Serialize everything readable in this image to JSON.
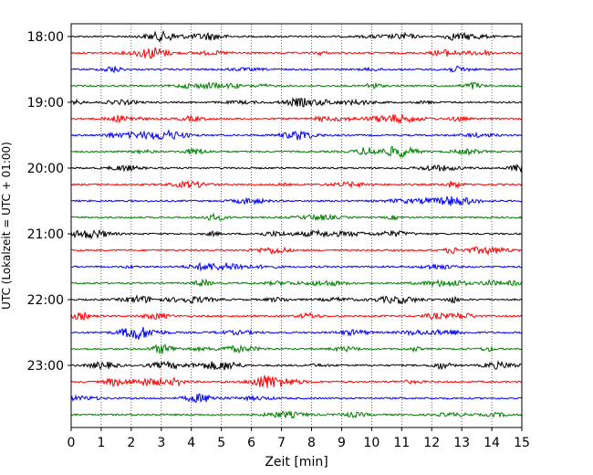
{
  "chart_data": {
    "type": "line",
    "title": "",
    "xlabel": "Zeit  [min]",
    "ylabel": "UTC (Lokalzeit = UTC + 01:00)",
    "xlim": [
      0,
      15
    ],
    "x_ticks": [
      "0",
      "1",
      "2",
      "3",
      "4",
      "5",
      "6",
      "7",
      "8",
      "9",
      "10",
      "11",
      "12",
      "13",
      "14",
      "15"
    ],
    "y_ticks": [
      "18:00",
      "19:00",
      "20:00",
      "21:00",
      "22:00",
      "23:00"
    ],
    "grid": "vertical dotted",
    "trace_start_time": "18:00",
    "trace_interval_min": 15,
    "trace_count": 24,
    "trace_colors": [
      "#000000",
      "#ff0000",
      "#0000ff",
      "#008000"
    ]
  }
}
